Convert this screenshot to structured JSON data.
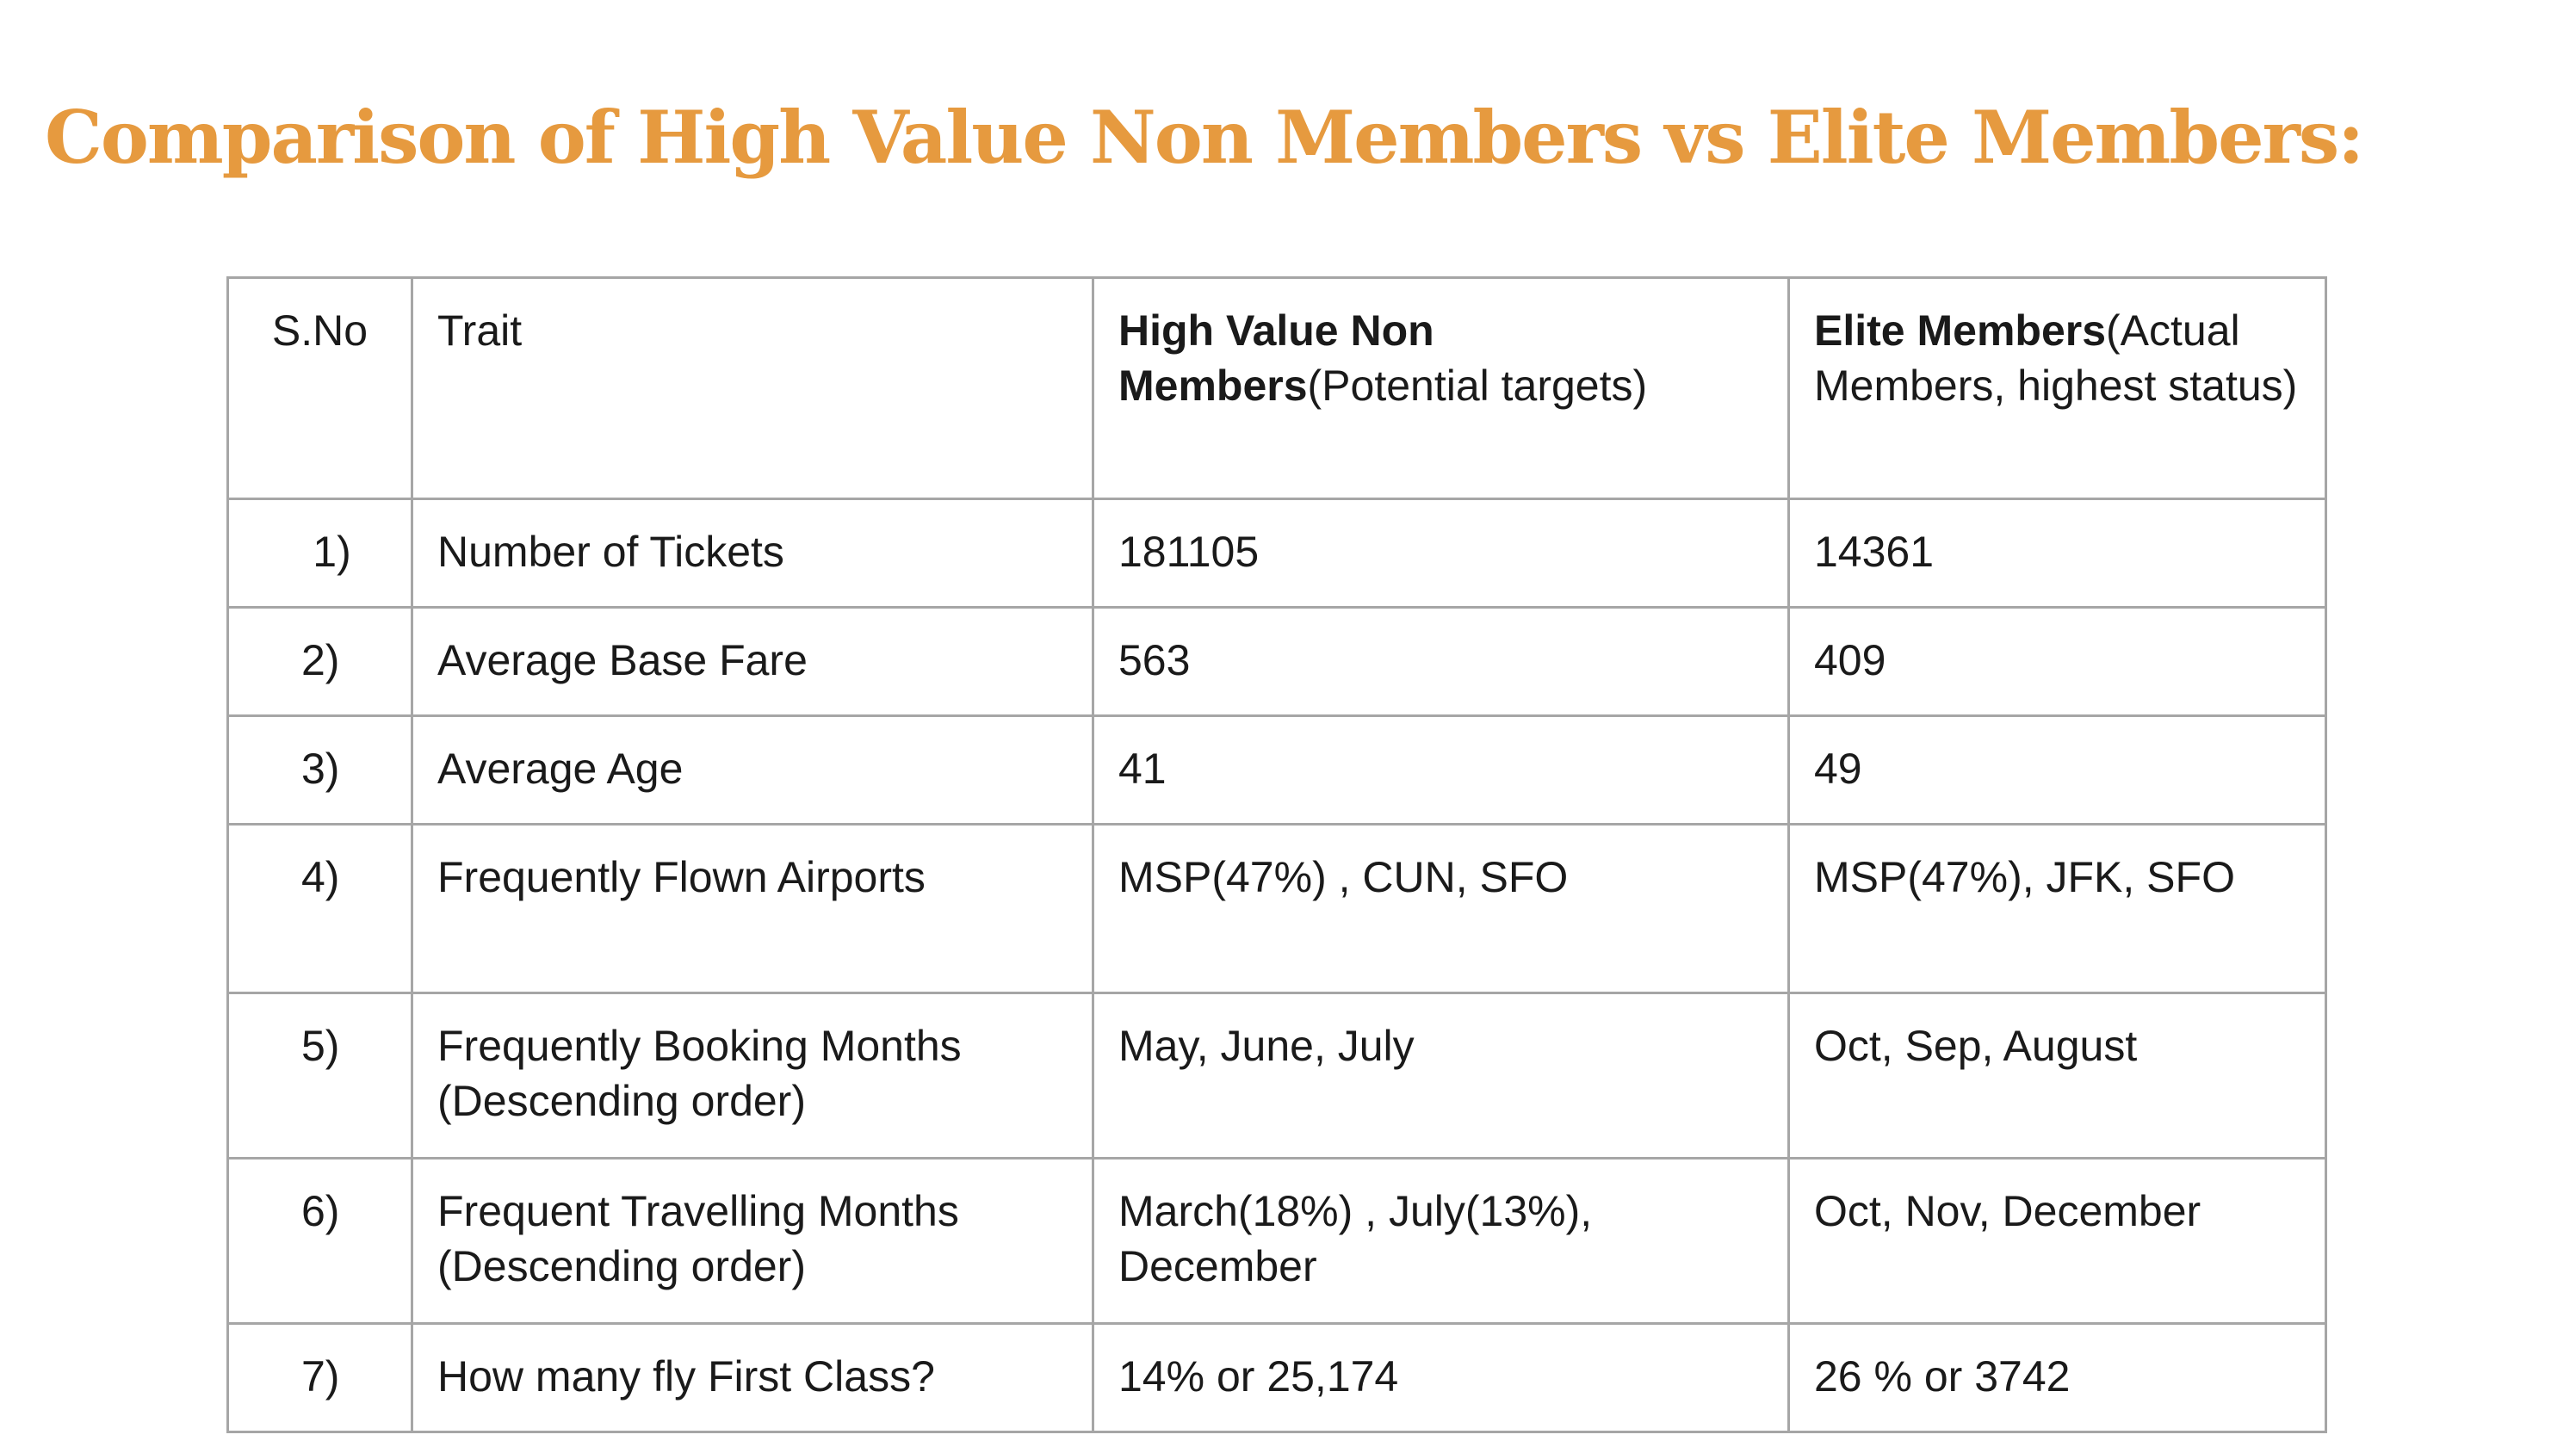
{
  "title": "Comparison of High Value Non Members vs Elite Members:",
  "table": {
    "header": {
      "sno": "S.No",
      "trait": "Trait",
      "hv_bold": "High Value Non Members",
      "hv_rest": "(Potential targets)",
      "elite_bold": "Elite Members",
      "elite_rest": "(Actual Members, highest status)"
    },
    "rows": [
      {
        "sno": "1)",
        "trait": "Number of Tickets",
        "hv": "181105",
        "elite": "14361"
      },
      {
        "sno": "2)",
        "trait": "Average Base Fare",
        "hv": "563",
        "elite": "409"
      },
      {
        "sno": "3)",
        "trait": "Average Age",
        "hv": "41",
        "elite": "49"
      },
      {
        "sno": "4)",
        "trait": "Frequently Flown Airports",
        "hv": "MSP(47%) , CUN, SFO",
        "elite": "MSP(47%), JFK, SFO"
      },
      {
        "sno": "5)",
        "trait": "Frequently Booking Months (Descending order)",
        "hv": "May, June, July",
        "elite": "Oct, Sep, August"
      },
      {
        "sno": "6)",
        "trait": "Frequent Travelling Months (Descending order)",
        "hv": "March(18%) , July(13%), December",
        "elite": "Oct, Nov, December"
      },
      {
        "sno": "7)",
        "trait": "How many fly First Class?",
        "hv": "14% or 25,174",
        "elite": "26 % or 3742"
      }
    ]
  }
}
